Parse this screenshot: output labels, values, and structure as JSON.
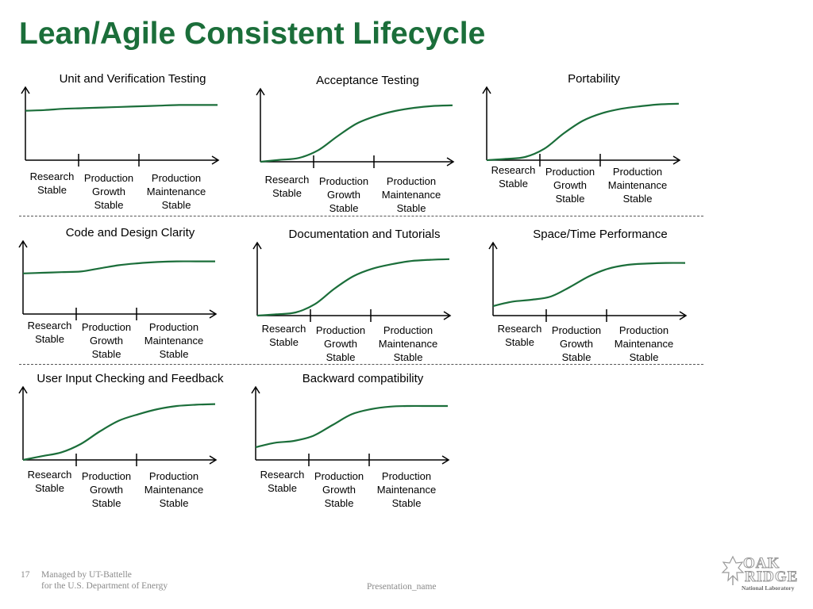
{
  "slide": {
    "title": "Lean/Agile Consistent Lifecycle",
    "page_number": "17",
    "footer_line1": "Managed by UT-Battelle",
    "footer_line2": "for the U.S. Department of Energy",
    "presentation_name": "Presentation_name",
    "logo": {
      "word1": "OAK",
      "word2": "RIDGE",
      "subtitle": "National Laboratory"
    }
  },
  "colors": {
    "title": "#1b6e3a",
    "curve": "#1b6e3a",
    "axis": "#000000",
    "footer": "#8a8a8a"
  },
  "chart_data": [
    {
      "type": "line",
      "title": "Unit and Verification Testing",
      "categories": [
        "Research\nStable",
        "Production\nGrowth\nStable",
        "Production\nMaintenance\nStable"
      ],
      "x": [
        0,
        0.1,
        0.2,
        0.3,
        0.4,
        0.5,
        0.6,
        0.7,
        0.8,
        0.9,
        1.0
      ],
      "values": [
        0.78,
        0.79,
        0.81,
        0.82,
        0.83,
        0.84,
        0.85,
        0.86,
        0.87,
        0.87,
        0.87
      ],
      "ylim": [
        0,
        1
      ]
    },
    {
      "type": "line",
      "title": "Acceptance Testing",
      "categories": [
        "Research\nStable",
        "Production\nGrowth\nStable",
        "Production\nMaintenance\nStable"
      ],
      "x": [
        0,
        0.1,
        0.2,
        0.3,
        0.4,
        0.5,
        0.6,
        0.7,
        0.8,
        0.9,
        1.0
      ],
      "values": [
        0.0,
        0.03,
        0.06,
        0.18,
        0.4,
        0.6,
        0.72,
        0.8,
        0.85,
        0.88,
        0.89
      ],
      "ylim": [
        0,
        1
      ]
    },
    {
      "type": "line",
      "title": "Portability",
      "categories": [
        "Research\nStable",
        "Production\nGrowth\nStable",
        "Production\nMaintenance\nStable"
      ],
      "x": [
        0,
        0.1,
        0.2,
        0.3,
        0.4,
        0.5,
        0.6,
        0.7,
        0.8,
        0.9,
        1.0
      ],
      "values": [
        0.0,
        0.02,
        0.05,
        0.18,
        0.42,
        0.62,
        0.74,
        0.81,
        0.85,
        0.88,
        0.89
      ],
      "ylim": [
        0,
        1
      ]
    },
    {
      "type": "line",
      "title": "Code and Design Clarity",
      "categories": [
        "Research\nStable",
        "Production\nGrowth\nStable",
        "Production\nMaintenance\nStable"
      ],
      "x": [
        0,
        0.1,
        0.2,
        0.3,
        0.4,
        0.5,
        0.6,
        0.7,
        0.8,
        0.9,
        1.0
      ],
      "values": [
        0.64,
        0.65,
        0.66,
        0.67,
        0.72,
        0.77,
        0.8,
        0.82,
        0.83,
        0.83,
        0.83
      ],
      "ylim": [
        0,
        1
      ]
    },
    {
      "type": "line",
      "title": "Documentation and Tutorials",
      "categories": [
        "Research\nStable",
        "Production\nGrowth\nStable",
        "Production\nMaintenance\nStable"
      ],
      "x": [
        0,
        0.1,
        0.2,
        0.3,
        0.4,
        0.5,
        0.6,
        0.7,
        0.8,
        0.9,
        1.0
      ],
      "values": [
        0.0,
        0.02,
        0.05,
        0.18,
        0.42,
        0.62,
        0.74,
        0.81,
        0.86,
        0.88,
        0.89
      ],
      "ylim": [
        0,
        1
      ]
    },
    {
      "type": "line",
      "title": "Space/Time Performance",
      "categories": [
        "Research\nStable",
        "Production\nGrowth\nStable",
        "Production\nMaintenance\nStable"
      ],
      "x": [
        0,
        0.1,
        0.2,
        0.3,
        0.4,
        0.5,
        0.6,
        0.7,
        0.8,
        0.9,
        1.0
      ],
      "values": [
        0.15,
        0.22,
        0.25,
        0.3,
        0.45,
        0.62,
        0.74,
        0.8,
        0.82,
        0.83,
        0.83
      ],
      "ylim": [
        0,
        1
      ]
    },
    {
      "type": "line",
      "title": "User Input Checking and Feedback",
      "categories": [
        "Research\nStable",
        "Production\nGrowth\nStable",
        "Production\nMaintenance\nStable"
      ],
      "x": [
        0,
        0.1,
        0.2,
        0.3,
        0.4,
        0.5,
        0.6,
        0.7,
        0.8,
        0.9,
        1.0
      ],
      "values": [
        0.0,
        0.06,
        0.12,
        0.25,
        0.45,
        0.62,
        0.72,
        0.8,
        0.85,
        0.87,
        0.88
      ],
      "ylim": [
        0,
        1
      ]
    },
    {
      "type": "line",
      "title": "Backward compatibility",
      "categories": [
        "Research\nStable",
        "Production\nGrowth\nStable",
        "Production\nMaintenance\nStable"
      ],
      "x": [
        0,
        0.1,
        0.2,
        0.3,
        0.4,
        0.5,
        0.6,
        0.7,
        0.8,
        0.9,
        1.0
      ],
      "values": [
        0.2,
        0.27,
        0.3,
        0.38,
        0.55,
        0.72,
        0.8,
        0.84,
        0.85,
        0.85,
        0.85
      ],
      "ylim": [
        0,
        1
      ]
    }
  ]
}
